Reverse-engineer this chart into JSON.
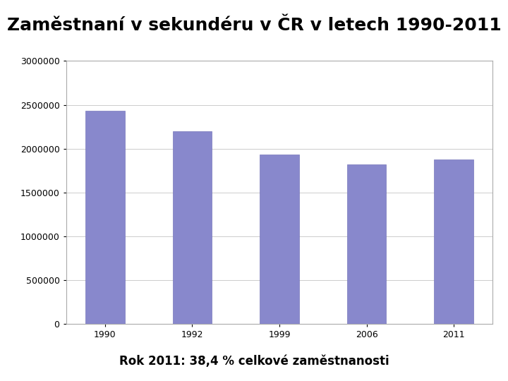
{
  "title": "Zaměstnaní v sekundéru v ČR v letech 1990-2011",
  "subtitle": "Rok 2011: 38,4 % celkové zaměstnanosti",
  "categories": [
    "1990",
    "1992",
    "1999",
    "2006",
    "2011"
  ],
  "values": [
    2430000,
    2200000,
    1930000,
    1820000,
    1880000
  ],
  "bar_color": "#8888cc",
  "bar_edge_color": "#7777bb",
  "ylim": [
    0,
    3000000
  ],
  "yticks": [
    0,
    500000,
    1000000,
    1500000,
    2000000,
    2500000,
    3000000
  ],
  "background_color": "#ffffff",
  "plot_bg_color": "#ffffff",
  "title_fontsize": 18,
  "subtitle_fontsize": 12,
  "tick_fontsize": 9,
  "grid_color": "#cccccc",
  "bar_width": 0.45,
  "box_color": "#aaaaaa"
}
